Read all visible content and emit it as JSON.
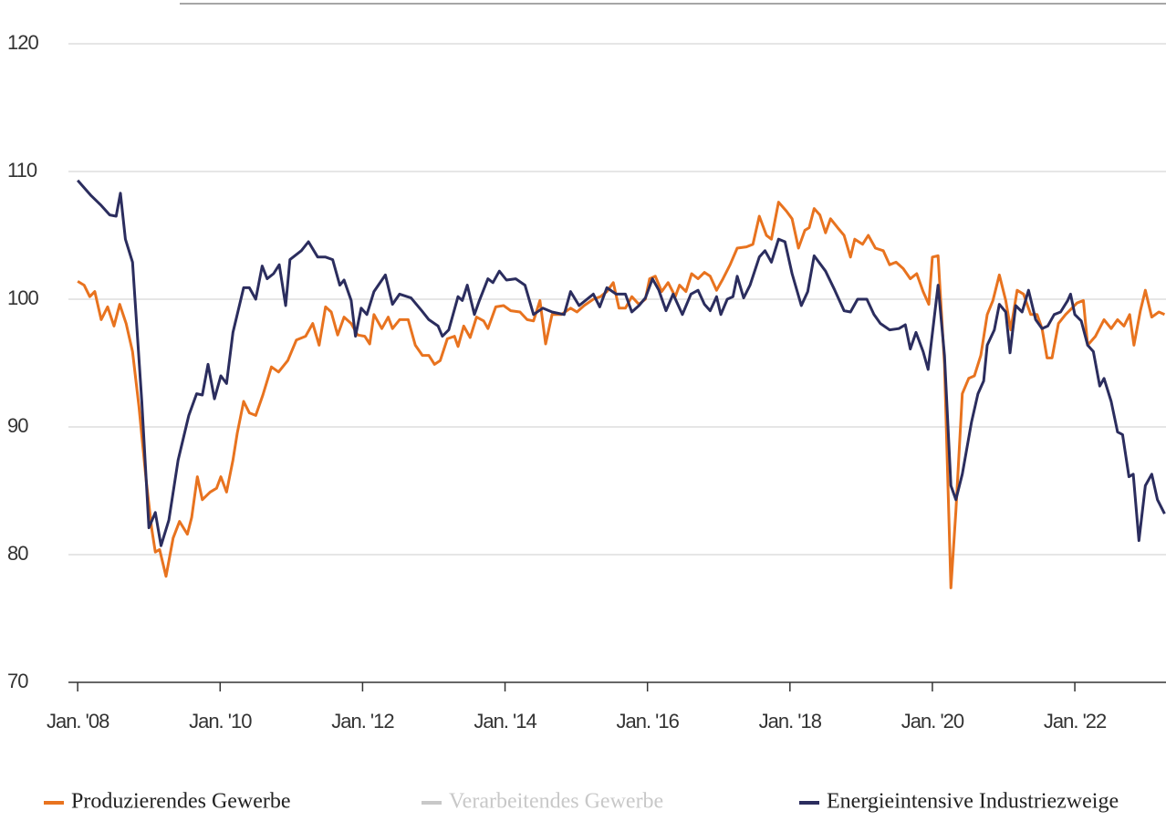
{
  "chart_data": {
    "type": "line",
    "xlim": [
      2007.87,
      2023.28
    ],
    "ylim": [
      70,
      120
    ],
    "yticks": [
      70,
      80,
      90,
      100,
      110,
      120
    ],
    "xticks": [
      {
        "value": 2008,
        "label": "Jan. '08"
      },
      {
        "value": 2010,
        "label": "Jan. '10"
      },
      {
        "value": 2012,
        "label": "Jan. '12"
      },
      {
        "value": 2014,
        "label": "Jan. '14"
      },
      {
        "value": 2016,
        "label": "Jan. '16"
      },
      {
        "value": 2018,
        "label": "Jan. '18"
      },
      {
        "value": 2020,
        "label": "Jan. '20"
      },
      {
        "value": 2022,
        "label": "Jan. '22"
      }
    ],
    "grid": true,
    "legend": "bottom",
    "series": [
      {
        "name": "Produzierendes Gewerbe",
        "color": "#e8731f",
        "x": [
          2008.0,
          2008.09,
          2008.17,
          2008.24,
          2008.33,
          2008.42,
          2008.51,
          2008.59,
          2008.68,
          2008.77,
          2008.86,
          2008.96,
          2009.04,
          2009.09,
          2009.15,
          2009.24,
          2009.34,
          2009.43,
          2009.54,
          2009.6,
          2009.68,
          2009.75,
          2009.86,
          2009.95,
          2010.01,
          2010.09,
          2010.18,
          2010.24,
          2010.33,
          2010.41,
          2010.5,
          2010.6,
          2010.72,
          2010.82,
          2010.95,
          2011.07,
          2011.2,
          2011.3,
          2011.39,
          2011.48,
          2011.56,
          2011.65,
          2011.74,
          2011.84,
          2011.93,
          2012.03,
          2012.1,
          2012.16,
          2012.27,
          2012.36,
          2012.42,
          2012.52,
          2012.64,
          2012.74,
          2012.84,
          2012.93,
          2013.01,
          2013.09,
          2013.19,
          2013.29,
          2013.34,
          2013.42,
          2013.51,
          2013.6,
          2013.7,
          2013.76,
          2013.87,
          2013.98,
          2014.08,
          2014.21,
          2014.31,
          2014.4,
          2014.49,
          2014.57,
          2014.66,
          2014.79,
          2014.92,
          2015.01,
          2015.11,
          2015.24,
          2015.34,
          2015.43,
          2015.52,
          2015.6,
          2015.69,
          2015.78,
          2015.88,
          2015.97,
          2016.03,
          2016.11,
          2016.2,
          2016.29,
          2016.39,
          2016.45,
          2016.54,
          2016.62,
          2016.71,
          2016.8,
          2016.88,
          2016.97,
          2017.06,
          2017.16,
          2017.26,
          2017.39,
          2017.48,
          2017.57,
          2017.67,
          2017.74,
          2017.84,
          2017.95,
          2018.03,
          2018.12,
          2018.21,
          2018.27,
          2018.34,
          2018.42,
          2018.5,
          2018.57,
          2018.67,
          2018.76,
          2018.85,
          2018.91,
          2019.02,
          2019.1,
          2019.2,
          2019.31,
          2019.4,
          2019.49,
          2019.59,
          2019.69,
          2019.78,
          2019.87,
          2019.95,
          2020.0,
          2020.08,
          2020.17,
          2020.26,
          2020.33,
          2020.42,
          2020.51,
          2020.59,
          2020.68,
          2020.77,
          2020.85,
          2020.94,
          2021.03,
          2021.1,
          2021.19,
          2021.28,
          2021.38,
          2021.47,
          2021.54,
          2021.61,
          2021.68,
          2021.77,
          2021.87,
          2021.96,
          2022.03,
          2022.12,
          2022.18,
          2022.29,
          2022.41,
          2022.51,
          2022.6,
          2022.69,
          2022.77,
          2022.83,
          2022.92,
          2022.99,
          2023.08,
          2023.18,
          2023.26
        ],
        "values": [
          101.4,
          101.1,
          100.2,
          100.6,
          98.4,
          99.4,
          97.9,
          99.6,
          98.1,
          95.9,
          91.6,
          85.9,
          82,
          80.2,
          80.4,
          78.3,
          81.3,
          82.6,
          81.6,
          82.9,
          86.1,
          84.3,
          84.9,
          85.2,
          86.1,
          84.9,
          87.4,
          89.5,
          92,
          91.1,
          90.9,
          92.5,
          94.7,
          94.3,
          95.2,
          96.8,
          97.1,
          98.1,
          96.4,
          99.4,
          99,
          97.2,
          98.6,
          98.1,
          97.2,
          97.1,
          96.5,
          98.8,
          97.7,
          98.6,
          97.7,
          98.4,
          98.4,
          96.4,
          95.6,
          95.6,
          94.9,
          95.2,
          96.9,
          97.1,
          96.3,
          97.9,
          97,
          98.6,
          98.3,
          97.7,
          99.4,
          99.5,
          99.1,
          99,
          98.4,
          98.3,
          99.9,
          96.5,
          98.8,
          98.8,
          99.3,
          99,
          99.5,
          100,
          100.2,
          100.6,
          101.3,
          99.3,
          99.3,
          100.2,
          99.6,
          100,
          101.6,
          101.8,
          100.6,
          101.3,
          100.2,
          101.1,
          100.6,
          102,
          101.6,
          102.1,
          101.8,
          100.7,
          101.6,
          102.7,
          104,
          104.1,
          104.3,
          106.5,
          105,
          104.7,
          107.6,
          106.9,
          106.3,
          104,
          105.4,
          105.6,
          107.1,
          106.6,
          105.2,
          106.3,
          105.6,
          105,
          103.3,
          104.7,
          104.3,
          105,
          104,
          103.8,
          102.7,
          102.9,
          102.4,
          101.6,
          102,
          100.6,
          99.6,
          103.3,
          103.4,
          94.9,
          77.4,
          83.4,
          92.6,
          93.8,
          94,
          95.6,
          98.8,
          99.9,
          101.9,
          99.9,
          97.6,
          100.7,
          100.4,
          98.8,
          98.8,
          97.7,
          95.4,
          95.4,
          98.1,
          98.8,
          99.3,
          99.7,
          99.9,
          96.4,
          97.1,
          98.4,
          97.7,
          98.4,
          97.9,
          98.8,
          96.4,
          99.1,
          100.7,
          98.6,
          99,
          98.8
        ]
      },
      {
        "name": "Verarbeitendes Gewerbe",
        "color": "#c8c8c8",
        "visible": false
      },
      {
        "name": "Energieintensive Industriezweige",
        "color": "#2b2d5e",
        "x": [
          2008.0,
          2008.19,
          2008.32,
          2008.45,
          2008.54,
          2008.6,
          2008.67,
          2008.77,
          2008.9,
          2009.0,
          2009.09,
          2009.17,
          2009.28,
          2009.41,
          2009.56,
          2009.67,
          2009.75,
          2009.83,
          2009.92,
          2010.01,
          2010.09,
          2010.18,
          2010.33,
          2010.41,
          2010.5,
          2010.59,
          2010.66,
          2010.75,
          2010.83,
          2010.92,
          2010.98,
          2011.14,
          2011.24,
          2011.37,
          2011.48,
          2011.58,
          2011.68,
          2011.74,
          2011.84,
          2011.9,
          2011.98,
          2012.06,
          2012.16,
          2012.32,
          2012.42,
          2012.52,
          2012.68,
          2012.83,
          2012.93,
          2013.06,
          2013.12,
          2013.21,
          2013.34,
          2013.4,
          2013.47,
          2013.57,
          2013.64,
          2013.76,
          2013.83,
          2013.92,
          2014.02,
          2014.15,
          2014.28,
          2014.4,
          2014.53,
          2014.66,
          2014.83,
          2014.92,
          2015.04,
          2015.24,
          2015.33,
          2015.43,
          2015.56,
          2015.69,
          2015.78,
          2015.88,
          2015.97,
          2016.07,
          2016.16,
          2016.26,
          2016.36,
          2016.49,
          2016.61,
          2016.71,
          2016.8,
          2016.88,
          2016.97,
          2017.03,
          2017.12,
          2017.2,
          2017.26,
          2017.35,
          2017.44,
          2017.57,
          2017.65,
          2017.74,
          2017.84,
          2017.93,
          2018.03,
          2018.16,
          2018.25,
          2018.34,
          2018.5,
          2018.63,
          2018.76,
          2018.85,
          2018.95,
          2019.08,
          2019.18,
          2019.27,
          2019.4,
          2019.53,
          2019.62,
          2019.69,
          2019.77,
          2019.87,
          2019.94,
          2020.08,
          2020.17,
          2020.26,
          2020.33,
          2020.42,
          2020.55,
          2020.64,
          2020.72,
          2020.77,
          2020.87,
          2020.94,
          2021.03,
          2021.09,
          2021.17,
          2021.26,
          2021.35,
          2021.45,
          2021.54,
          2021.62,
          2021.71,
          2021.8,
          2021.9,
          2021.94,
          2022.0,
          2022.09,
          2022.18,
          2022.26,
          2022.35,
          2022.41,
          2022.51,
          2022.6,
          2022.67,
          2022.76,
          2022.82,
          2022.9,
          2022.99,
          2023.08,
          2023.16,
          2023.26
        ],
        "values": [
          109.3,
          108.1,
          107.4,
          106.6,
          106.5,
          108.3,
          104.7,
          102.9,
          92,
          82.1,
          83.3,
          80.7,
          82.7,
          87.4,
          90.9,
          92.6,
          92.5,
          94.9,
          92.2,
          94,
          93.4,
          97.4,
          100.9,
          100.9,
          100,
          102.6,
          101.6,
          102,
          102.7,
          99.5,
          103.1,
          103.8,
          104.5,
          103.3,
          103.3,
          103.1,
          101.1,
          101.5,
          99.9,
          97.1,
          99.3,
          98.8,
          100.6,
          101.9,
          99.6,
          100.4,
          100.1,
          99.1,
          98.4,
          97.9,
          97.1,
          97.6,
          100.2,
          99.9,
          101.1,
          98.8,
          99.9,
          101.6,
          101.3,
          102.2,
          101.5,
          101.6,
          101.1,
          98.8,
          99.3,
          99,
          98.8,
          100.6,
          99.5,
          100.4,
          99.4,
          100.9,
          100.4,
          100.4,
          99,
          99.5,
          100.1,
          101.6,
          100.7,
          99.1,
          100.4,
          98.8,
          100.4,
          100.7,
          99.6,
          99.1,
          100.2,
          98.8,
          100,
          100.2,
          101.8,
          100.1,
          101.1,
          103.3,
          103.8,
          102.9,
          104.7,
          104.5,
          102,
          99.5,
          100.6,
          103.4,
          102.2,
          100.7,
          99.1,
          99,
          100,
          100,
          98.8,
          98.1,
          97.6,
          97.7,
          98,
          96.1,
          97.4,
          95.9,
          94.5,
          101.1,
          95.6,
          85.4,
          84.3,
          86.3,
          90.4,
          92.6,
          93.6,
          96.4,
          97.6,
          99.6,
          99,
          95.8,
          99.5,
          99,
          100.7,
          98.4,
          97.7,
          97.9,
          98.8,
          99,
          99.9,
          100.4,
          98.8,
          98.3,
          96.4,
          95.9,
          93.2,
          93.8,
          92,
          89.6,
          89.4,
          86.1,
          86.3,
          81.1,
          85.4,
          86.3,
          84.3,
          83.2
        ]
      }
    ]
  }
}
